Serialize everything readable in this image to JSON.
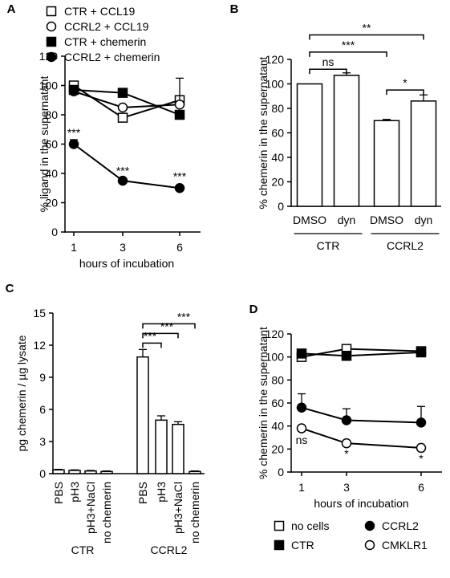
{
  "chart_data": [
    {
      "panel": "A",
      "type": "line",
      "ylabel": "% ligand in the supernatant",
      "xlabel": "hours of incubation",
      "x": [
        1,
        3,
        6
      ],
      "ylim": [
        0,
        120
      ],
      "yticks": [
        0,
        20,
        40,
        60,
        80,
        100,
        120
      ],
      "series": [
        {
          "name": "CTR + CCL19",
          "marker": "open-square",
          "values": [
            100,
            78,
            90
          ],
          "errors": [
            0,
            0,
            0
          ]
        },
        {
          "name": "CCRL2 + CCL19",
          "marker": "open-circle",
          "values": [
            96,
            85,
            87
          ],
          "errors": [
            0,
            0,
            18
          ]
        },
        {
          "name": "CTR + chemerin",
          "marker": "filled-square",
          "values": [
            97,
            95,
            80
          ],
          "errors": [
            0,
            0,
            0
          ]
        },
        {
          "name": "CCRL2 + chemerin",
          "marker": "filled-circle",
          "values": [
            60,
            35,
            30
          ],
          "errors": [
            3,
            0,
            0
          ]
        }
      ],
      "annotations": [
        {
          "x": 1,
          "y": 68,
          "text": "***"
        },
        {
          "x": 3,
          "y": 42,
          "text": "***"
        },
        {
          "x": 6,
          "y": 38,
          "text": "***"
        }
      ]
    },
    {
      "panel": "B",
      "type": "bar",
      "ylabel": "% chemerin in the supernatant",
      "categories": [
        "DMSO",
        "dyn",
        "DMSO",
        "dyn"
      ],
      "groups": [
        "CTR",
        "CCRL2"
      ],
      "values": [
        100,
        107,
        70,
        86
      ],
      "errors": [
        0,
        2,
        1,
        5
      ],
      "ylim": [
        0,
        120
      ],
      "yticks": [
        0,
        20,
        40,
        60,
        80,
        100,
        120
      ],
      "brackets": [
        {
          "from": 0,
          "to": 1,
          "y": 112,
          "text": "ns"
        },
        {
          "from": 2,
          "to": 3,
          "y": 95,
          "text": "*"
        },
        {
          "from": 0,
          "to": 2,
          "y": 126,
          "text": "***"
        },
        {
          "from": 0,
          "to": 3,
          "y": 140,
          "text": "**"
        }
      ]
    },
    {
      "panel": "C",
      "type": "bar",
      "ylabel": "pg chemerin / µg lysate",
      "categories": [
        "PBS",
        "pH3",
        "pH3+NaCl",
        "no chemerin",
        "PBS",
        "pH3",
        "pH3+NaCl",
        "no chemerin"
      ],
      "groups": [
        "CTR",
        "CCRL2"
      ],
      "values": [
        0.35,
        0.3,
        0.25,
        0.2,
        10.9,
        5.0,
        4.6,
        0.2
      ],
      "errors": [
        0.05,
        0.05,
        0.05,
        0.05,
        0.7,
        0.4,
        0.25,
        0.05
      ],
      "ylim": [
        0,
        15
      ],
      "yticks": [
        0,
        3,
        6,
        9,
        12,
        15
      ],
      "brackets": [
        {
          "from": 4,
          "to": 5,
          "y": 12.2,
          "text": "***"
        },
        {
          "from": 4,
          "to": 6,
          "y": 13.1,
          "text": "***"
        },
        {
          "from": 4,
          "to": 7,
          "y": 14.0,
          "text": "***"
        }
      ]
    },
    {
      "panel": "D",
      "type": "line",
      "ylabel": "% chemerin in the supernatant",
      "xlabel": "hours of incubation",
      "x": [
        1,
        3,
        6
      ],
      "ylim": [
        0,
        120
      ],
      "yticks": [
        0,
        20,
        40,
        60,
        80,
        100,
        120
      ],
      "series": [
        {
          "name": "no cells",
          "marker": "open-square",
          "values": [
            100,
            107,
            105
          ],
          "errors": [
            0,
            0,
            0
          ]
        },
        {
          "name": "CTR",
          "marker": "filled-square",
          "values": [
            103,
            101,
            104
          ],
          "errors": [
            0,
            0,
            0
          ]
        },
        {
          "name": "CCRL2",
          "marker": "filled-circle",
          "values": [
            56,
            45,
            43
          ],
          "errors": [
            12,
            10,
            14
          ]
        },
        {
          "name": "CMKLR1",
          "marker": "open-circle",
          "values": [
            38,
            25,
            21
          ],
          "errors": [
            0,
            0,
            0
          ]
        }
      ],
      "annotations": [
        {
          "x": 1,
          "y": 28,
          "text": "ns"
        },
        {
          "x": 3,
          "y": 16,
          "text": "*"
        },
        {
          "x": 6,
          "y": 12,
          "text": "*"
        }
      ]
    }
  ]
}
